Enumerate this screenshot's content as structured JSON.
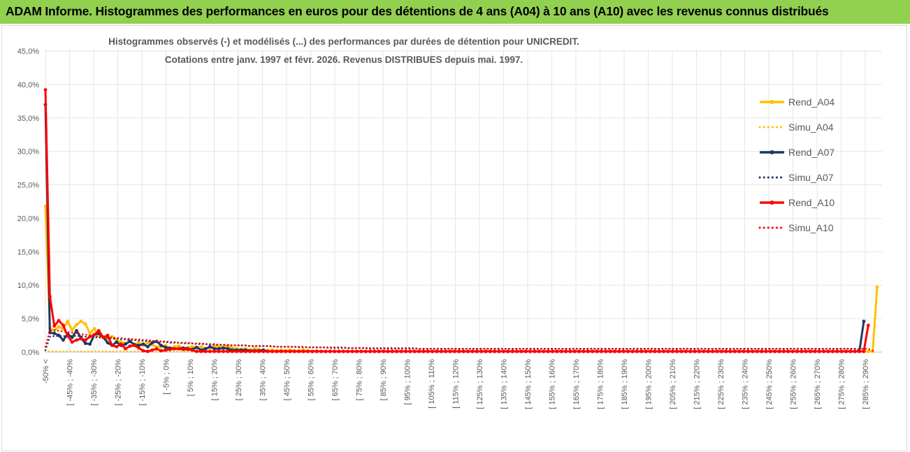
{
  "banner": {
    "title": "ADAM Informe. Histogrammes des performances en euros pour des détentions de 4 ans (A04) à 10 ans (A10) avec les revenus connus distribués"
  },
  "chart_data": {
    "type": "line",
    "title_line1": "Histogrammes observés (-) et modélisés (...) des performances par durées de détention pour UNICREDIT.",
    "title_line2": "Cotations entre janv. 1997 et févr. 2026. Revenus DISTRIBUES depuis mai. 1997.",
    "ylim": [
      0,
      45
    ],
    "y_ticks": [
      "0,0%",
      "5,0%",
      "10,0%",
      "15,0%",
      "20,0%",
      "25,0%",
      "30,0%",
      "35,0%",
      "40,0%",
      "45,0%"
    ],
    "x_labels": [
      "-50% <",
      "[ -45% ; -40%",
      "[ -35% ; -30%",
      "[ -25% ; -20%",
      "[ -15% ; -10%",
      "[ -5% ; 0%",
      "[ 5% ; 10%",
      "[ 15% ; 20%",
      "[ 25% ; 30%",
      "[ 35% ; 40%",
      "[ 45% ; 50%",
      "[ 55% ; 60%",
      "[ 65% ; 70%",
      "[ 75% ; 80%",
      "[ 85% ; 90%",
      "[ 95% ; 100%",
      "[ 105% ; 110%",
      "[ 115% ; 120%",
      "[ 125% ; 130%",
      "[ 135% ; 140%",
      "[ 145% ; 150%",
      "[ 155% ; 160%",
      "[ 165% ; 170%",
      "[ 175% ; 180%",
      "[ 185% ; 190%",
      "[ 195% ; 200%",
      "[ 205% ; 210%",
      "[ 215% ; 220%",
      "[ 225% ; 230%",
      "[ 235% ; 240%",
      "[ 245% ; 250%",
      "[ 255% ; 260%",
      "[ 265% ; 270%",
      "[ 275% ; 280%",
      "[ 285% ; 290%"
    ],
    "series": [
      {
        "name": "Rend_A04",
        "style": "solid",
        "color": "#ffc000",
        "values": [
          21.8,
          3.6,
          3.2,
          3.8,
          3.5,
          4.6,
          3.3,
          4.1,
          4.6,
          4.2,
          2.8,
          3.5,
          2.5,
          2.3,
          1.9,
          2.3,
          1.8,
          1.5,
          1.3,
          1.6,
          1.2,
          1.4,
          1.0,
          1.4,
          1.1,
          0.8,
          0.8,
          1.0,
          0.5,
          0.8,
          0.9,
          0.6,
          0.7,
          0.8,
          0.7,
          0.8,
          0.5,
          0.6,
          0.9,
          0.8,
          0.8,
          0.9,
          0.6,
          0.5,
          0.4,
          0.5,
          0.3,
          0.5,
          0.4,
          0.2,
          0.3,
          0.3,
          0.2,
          0.3,
          0.2,
          0.3,
          0.2,
          0.2,
          0.3,
          0.2,
          0.1,
          0.2,
          0.1,
          0.1,
          0.1,
          0.1,
          0.1,
          0.1,
          0.1,
          0.1,
          0.1,
          0.1,
          0.1,
          0.1,
          0.1,
          0.1,
          0.1,
          0.1,
          0.1,
          0.1,
          0.1,
          0.1,
          0.1,
          0.1,
          0.1,
          0.1,
          0.1,
          0.1,
          0.1,
          0.1,
          0.1,
          0.1,
          0.1,
          0.1,
          0.1,
          0.1,
          0.1,
          0.1,
          0.1,
          0.1,
          0.1,
          0.1,
          0.1,
          0.1,
          0.1,
          0.1,
          0.1,
          0.1,
          0.1,
          0.1,
          0.1,
          0.1,
          0.1,
          0.1,
          0.1,
          0.1,
          0.1,
          0.1,
          0.1,
          0.1,
          0.1,
          0.1,
          0.1,
          0.1,
          0.1,
          0.1,
          0.1,
          0.1,
          0.1,
          0.1,
          0.1,
          0.1,
          0.1,
          0.1,
          0.1,
          0.1,
          0.1,
          0.1,
          0.1,
          0.1,
          0.1,
          0.1,
          0.1,
          0.1,
          0.1,
          0.1,
          0.1,
          0.1,
          0.1,
          0.1,
          0.1,
          0.1,
          0.1,
          0.1,
          0.1,
          0.1,
          0.1,
          0.1,
          0.1,
          0.1,
          0.1,
          0.1,
          0.1,
          0.1,
          0.1,
          0.1,
          0.1,
          0.1,
          0.1,
          0.1,
          0.1,
          0.1,
          0.1,
          0.1,
          0.1,
          0.1,
          0.1,
          0.1,
          0.1,
          0.1,
          0.1,
          0.1,
          0.1,
          0.1,
          0.1,
          0.1,
          0.1,
          9.7
        ]
      },
      {
        "name": "Simu_A04",
        "style": "dotted",
        "color": "#ffc000",
        "values": [
          0.2,
          0.1,
          0.1,
          0.1,
          0.1,
          0.1,
          0.1,
          0.1,
          0.1,
          0.1,
          0.1,
          0.1,
          0.1,
          0.1,
          0.1,
          0.1,
          0.1,
          0.1,
          0.1,
          0.1,
          0.1,
          0.1,
          0.1,
          0.1,
          0.1,
          0.1,
          0.1,
          0.1,
          0.1,
          0.1,
          0.1,
          0.1,
          0.1,
          0.1,
          0.1,
          0.1,
          0.1,
          0.1,
          0.1,
          0.1,
          0.1,
          0.1,
          0.1,
          0.1,
          0.1,
          0.1,
          0.1,
          0.1,
          0.1,
          0.1,
          0.1,
          0.1,
          0.1,
          0.1,
          0.1,
          0.1,
          0.1,
          0.1,
          0.1,
          0.1,
          0.1,
          0.1,
          0.1,
          0.1,
          0.1,
          0.1,
          0.1,
          0.1,
          0.1,
          0.1,
          0.1,
          0.1,
          0.1,
          0.1,
          0.1,
          0.1,
          0.1,
          0.1,
          0.1,
          0.1,
          0.1,
          0.1,
          0.1,
          0.1,
          0.1,
          0.1,
          0.1,
          0.1,
          0.1,
          0.1,
          0.1,
          0.1,
          0.1,
          0.1,
          0.1,
          0.1,
          0.1,
          0.1,
          0.1,
          0.1,
          0.1,
          0.1,
          0.1,
          0.1,
          0.1,
          0.1,
          0.1,
          0.1,
          0.1,
          0.1,
          0.1,
          0.1,
          0.1,
          0.1,
          0.1,
          0.1,
          0.1,
          0.1,
          0.1,
          0.1,
          0.1,
          0.1,
          0.1,
          0.1,
          0.1,
          0.1,
          0.1,
          0.1,
          0.1,
          0.1,
          0.1,
          0.1,
          0.1,
          0.1,
          0.1,
          0.1,
          0.1,
          0.1,
          0.1,
          0.1,
          0.1,
          0.1,
          0.1,
          0.1,
          0.1,
          0.1,
          0.1,
          0.1,
          0.1,
          0.1,
          0.1,
          0.1,
          0.1,
          0.1,
          0.1,
          0.1,
          0.1,
          0.1,
          0.1,
          0.1,
          0.1,
          0.1,
          0.1,
          0.1,
          0.1,
          0.1,
          0.1,
          0.1,
          0.1,
          0.1,
          0.1,
          0.1,
          0.1,
          0.1,
          0.1,
          0.1,
          0.1,
          0.1,
          0.1,
          0.1,
          0.1,
          0.1,
          0.1,
          0.1,
          0.1,
          0.1
        ]
      },
      {
        "name": "Rend_A07",
        "style": "solid",
        "color": "#1f3864",
        "values": [
          37.0,
          2.9,
          2.8,
          2.5,
          1.8,
          2.7,
          2.2,
          3.2,
          2.1,
          1.3,
          1.2,
          2.6,
          2.8,
          2.2,
          1.4,
          1.0,
          1.5,
          1.0,
          1.2,
          1.6,
          1.1,
          1.0,
          1.2,
          0.8,
          1.4,
          1.6,
          1.0,
          0.7,
          0.6,
          0.5,
          0.5,
          0.6,
          0.5,
          0.4,
          0.7,
          0.3,
          0.5,
          0.8,
          0.5,
          0.5,
          0.6,
          0.5,
          0.3,
          0.3,
          0.3,
          0.3,
          0.2,
          0.2,
          0.2,
          0.3,
          0.1,
          0.1,
          0.1,
          0.1,
          0.1,
          0.1,
          0.1,
          0.1,
          0.1,
          0.1,
          0.1,
          0.1,
          0.1,
          0.1,
          0.1,
          0.1,
          0.1,
          0.1,
          0.1,
          0.1,
          0.1,
          0.1,
          0.1,
          0.1,
          0.1,
          0.1,
          0.1,
          0.1,
          0.1,
          0.1,
          0.1,
          0.1,
          0.1,
          0.1,
          0.1,
          0.1,
          0.1,
          0.1,
          0.1,
          0.1,
          0.1,
          0.1,
          0.1,
          0.1,
          0.1,
          0.1,
          0.1,
          0.1,
          0.1,
          0.1,
          0.1,
          0.1,
          0.1,
          0.1,
          0.1,
          0.1,
          0.1,
          0.1,
          0.1,
          0.1,
          0.1,
          0.1,
          0.1,
          0.1,
          0.1,
          0.1,
          0.1,
          0.1,
          0.1,
          0.1,
          0.1,
          0.1,
          0.1,
          0.1,
          0.1,
          0.1,
          0.1,
          0.1,
          0.1,
          0.1,
          0.1,
          0.1,
          0.1,
          0.1,
          0.1,
          0.1,
          0.1,
          0.1,
          0.1,
          0.1,
          0.1,
          0.1,
          0.1,
          0.1,
          0.1,
          0.1,
          0.1,
          0.1,
          0.1,
          0.1,
          0.1,
          0.1,
          0.1,
          0.1,
          0.1,
          0.1,
          0.1,
          0.1,
          0.1,
          0.1,
          0.1,
          0.1,
          0.1,
          0.1,
          0.1,
          0.1,
          0.1,
          0.1,
          0.1,
          0.1,
          0.1,
          0.1,
          0.1,
          0.1,
          0.1,
          0.1,
          0.1,
          0.1,
          0.1,
          0.1,
          0.1,
          0.1,
          0.1,
          0.1,
          4.6
        ]
      },
      {
        "name": "Simu_A07",
        "style": "dotted",
        "color": "#1f3864",
        "values": [
          0.3,
          2.3,
          2.4,
          2.4,
          2.4,
          2.4,
          2.4,
          2.4,
          2.4,
          2.3,
          2.3,
          2.2,
          2.2,
          2.1,
          2.1,
          2.0,
          2.0,
          1.9,
          1.9,
          1.8,
          1.8,
          1.7,
          1.7,
          1.6,
          1.6,
          1.6,
          1.5,
          1.5,
          1.4,
          1.4,
          1.4,
          1.3,
          1.3,
          1.3,
          1.2,
          1.2,
          1.2,
          1.1,
          1.1,
          1.1,
          1.1,
          1.0,
          1.0,
          1.0,
          1.0,
          1.0,
          0.9,
          0.9,
          0.9,
          0.9,
          0.9,
          0.9,
          0.8,
          0.8,
          0.8,
          0.8,
          0.8,
          0.8,
          0.8,
          0.7,
          0.7,
          0.7,
          0.7,
          0.7,
          0.7,
          0.7,
          0.7,
          0.7,
          0.6,
          0.6,
          0.6,
          0.6,
          0.6,
          0.6,
          0.6,
          0.6,
          0.6,
          0.6,
          0.6,
          0.6,
          0.6,
          0.6,
          0.6,
          0.6,
          0.5,
          0.5,
          0.5,
          0.5,
          0.5,
          0.5,
          0.5,
          0.5,
          0.5,
          0.5,
          0.5,
          0.5,
          0.5,
          0.5,
          0.5,
          0.5,
          0.5,
          0.5,
          0.5,
          0.5,
          0.5,
          0.5,
          0.5,
          0.5,
          0.5,
          0.5,
          0.5,
          0.5,
          0.5,
          0.5,
          0.5,
          0.5,
          0.5,
          0.5,
          0.5,
          0.5,
          0.5,
          0.5,
          0.5,
          0.5,
          0.5,
          0.5,
          0.5,
          0.5,
          0.5,
          0.5,
          0.5,
          0.5,
          0.5,
          0.5,
          0.5,
          0.5,
          0.5,
          0.5,
          0.5,
          0.5,
          0.5,
          0.5,
          0.5,
          0.5,
          0.5,
          0.5,
          0.5,
          0.5,
          0.5,
          0.5,
          0.5,
          0.5,
          0.5,
          0.5,
          0.5,
          0.5,
          0.5,
          0.5,
          0.5,
          0.5,
          0.5,
          0.5,
          0.5,
          0.5,
          0.5,
          0.5,
          0.5,
          0.5,
          0.5,
          0.5,
          0.5,
          0.5,
          0.5,
          0.5,
          0.5,
          0.5,
          0.5,
          0.5,
          0.5,
          0.5,
          0.5,
          0.5,
          0.5,
          0.2
        ]
      },
      {
        "name": "Rend_A10",
        "style": "solid",
        "color": "#ff0000",
        "values": [
          39.2,
          8.3,
          3.9,
          4.7,
          4.0,
          2.4,
          1.5,
          1.8,
          2.0,
          1.8,
          2.3,
          2.6,
          3.2,
          2.2,
          2.5,
          1.0,
          0.8,
          1.2,
          0.5,
          0.9,
          1.0,
          0.6,
          0.2,
          0.1,
          0.3,
          0.5,
          0.2,
          0.3,
          0.4,
          0.5,
          0.5,
          0.4,
          0.4,
          0.3,
          0.1,
          0.1,
          0.1,
          0.1,
          0.1,
          0.1,
          0.1,
          0.1,
          0.1,
          0.1,
          0.1,
          0.1,
          0.1,
          0.1,
          0.1,
          0.1,
          0.1,
          0.1,
          0.1,
          0.1,
          0.1,
          0.1,
          0.1,
          0.1,
          0.1,
          0.1,
          0.1,
          0.1,
          0.1,
          0.1,
          0.1,
          0.1,
          0.1,
          0.1,
          0.1,
          0.1,
          0.1,
          0.1,
          0.1,
          0.1,
          0.1,
          0.1,
          0.1,
          0.1,
          0.1,
          0.1,
          0.1,
          0.1,
          0.1,
          0.1,
          0.1,
          0.1,
          0.1,
          0.1,
          0.1,
          0.1,
          0.1,
          0.1,
          0.1,
          0.1,
          0.1,
          0.1,
          0.1,
          0.1,
          0.1,
          0.1,
          0.1,
          0.1,
          0.1,
          0.1,
          0.1,
          0.1,
          0.1,
          0.1,
          0.1,
          0.1,
          0.1,
          0.1,
          0.1,
          0.1,
          0.1,
          0.1,
          0.1,
          0.1,
          0.1,
          0.1,
          0.1,
          0.1,
          0.1,
          0.1,
          0.1,
          0.1,
          0.1,
          0.1,
          0.1,
          0.1,
          0.1,
          0.1,
          0.1,
          0.1,
          0.1,
          0.1,
          0.1,
          0.1,
          0.1,
          0.1,
          0.1,
          0.1,
          0.1,
          0.1,
          0.1,
          0.1,
          0.1,
          0.1,
          0.1,
          0.1,
          0.1,
          0.1,
          0.1,
          0.1,
          0.1,
          0.1,
          0.1,
          0.1,
          0.1,
          0.1,
          0.1,
          0.1,
          0.1,
          0.1,
          0.1,
          0.1,
          0.1,
          0.1,
          0.1,
          0.1,
          0.1,
          0.1,
          0.1,
          0.1,
          0.1,
          0.1,
          0.1,
          0.1,
          0.1,
          0.1,
          0.1,
          0.1,
          0.1,
          0.1,
          0.1,
          4.0
        ]
      },
      {
        "name": "Simu_A10",
        "style": "dotted",
        "color": "#ff0000",
        "values": [
          0.8,
          3.2,
          3.3,
          3.2,
          3.1,
          3.0,
          2.9,
          2.8,
          2.7,
          2.6,
          2.5,
          2.4,
          2.3,
          2.3,
          2.2,
          2.2,
          2.1,
          2.1,
          2.0,
          2.0,
          1.9,
          1.9,
          1.8,
          1.8,
          1.7,
          1.7,
          1.6,
          1.6,
          1.5,
          1.5,
          1.4,
          1.4,
          1.4,
          1.3,
          1.3,
          1.3,
          1.2,
          1.2,
          1.2,
          1.1,
          1.1,
          1.1,
          1.0,
          1.0,
          1.0,
          1.0,
          0.9,
          0.9,
          0.9,
          0.9,
          0.9,
          0.8,
          0.8,
          0.8,
          0.8,
          0.8,
          0.8,
          0.7,
          0.7,
          0.7,
          0.7,
          0.7,
          0.7,
          0.7,
          0.6,
          0.6,
          0.6,
          0.6,
          0.6,
          0.6,
          0.6,
          0.6,
          0.6,
          0.5,
          0.5,
          0.5,
          0.5,
          0.5,
          0.5,
          0.5,
          0.5,
          0.5,
          0.5,
          0.5,
          0.5,
          0.5,
          0.5,
          0.5,
          0.5,
          0.5,
          0.5,
          0.5,
          0.5,
          0.5,
          0.5,
          0.5,
          0.5,
          0.5,
          0.5,
          0.5,
          0.5,
          0.5,
          0.5,
          0.5,
          0.5,
          0.5,
          0.5,
          0.5,
          0.5,
          0.5,
          0.5,
          0.5,
          0.5,
          0.5,
          0.5,
          0.5,
          0.5,
          0.5,
          0.5,
          0.5,
          0.5,
          0.5,
          0.5,
          0.5,
          0.5,
          0.5,
          0.5,
          0.5,
          0.5,
          0.5,
          0.5,
          0.5,
          0.5,
          0.5,
          0.5,
          0.5,
          0.5,
          0.5,
          0.5,
          0.5,
          0.5,
          0.5,
          0.5,
          0.5,
          0.5,
          0.5,
          0.5,
          0.5,
          0.5,
          0.5,
          0.5,
          0.5,
          0.5,
          0.5,
          0.5,
          0.5,
          0.5,
          0.5,
          0.5,
          0.5,
          0.5,
          0.5,
          0.5,
          0.5,
          0.5,
          0.5,
          0.5,
          0.5,
          0.5,
          0.5,
          0.5,
          0.5,
          0.5,
          0.5,
          0.5,
          0.5,
          0.5,
          0.5,
          0.5,
          0.5,
          0.5,
          0.5,
          0.5,
          0.5,
          0.5,
          0.5,
          0.2
        ]
      }
    ],
    "legend_position": "right",
    "grid": true
  }
}
